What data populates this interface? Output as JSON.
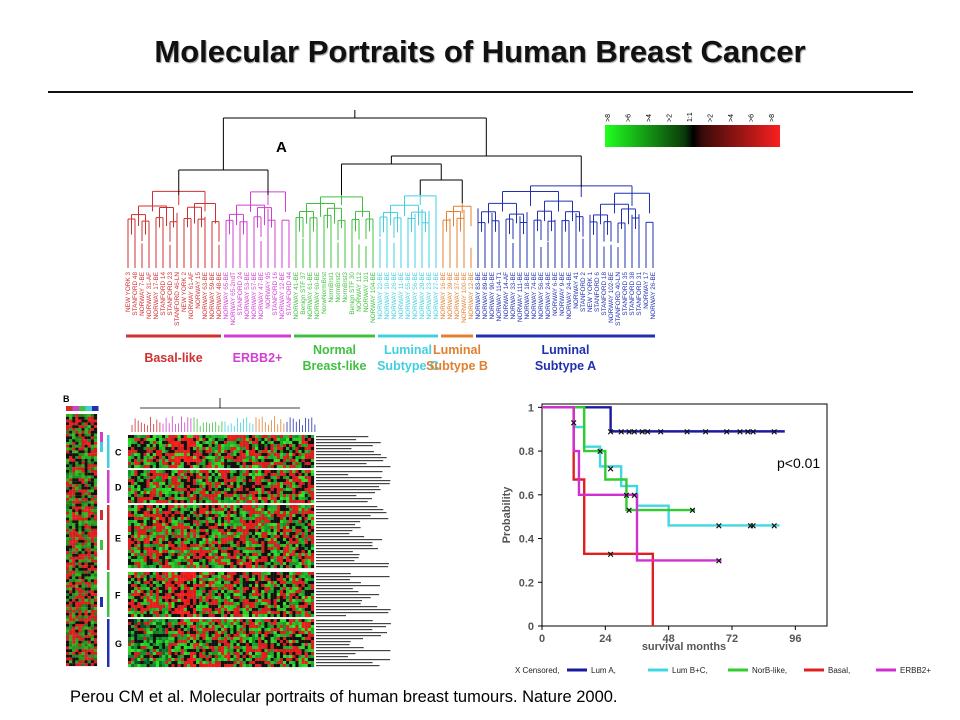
{
  "slide": {
    "title": "Molecular Portraits of Human Breast Cancer",
    "citation": "Perou CM et al. Molecular portraits of human breast tumours. Nature 2000."
  },
  "dendrogram": {
    "panel_label": "A",
    "scale_labels": [
      ">8",
      ">6",
      ">4",
      ">2",
      "1:1",
      ">2",
      ">4",
      ">6",
      ">8"
    ],
    "groups": [
      {
        "name": "Basal-like",
        "color": "#d03030",
        "samples": [
          "NEW YORK 3",
          "STANFORD 48",
          "NORWAY 7-BE",
          "NORWAY 31-AF",
          "NORWAY 17-BE",
          "STANFORD 14",
          "STANFORD 23",
          "STANFORD 46-LN",
          "NEW YORK 2",
          "NORWAY 61-AF",
          "NORWAY 15",
          "NORWAY 63-BE",
          "NORWAY 59-BE",
          "NORWAY 48-BE"
        ]
      },
      {
        "name": "ERBB2+",
        "color": "#d040d0",
        "samples": [
          "NORWAY 65-BE",
          "NORWAY 65-2ndT",
          "STANFORD 24",
          "NORWAY 53-BE",
          "NORWAY 57-BE",
          "NORWAY 47-BE",
          "NORWAY 95",
          "STANFORD 16",
          "NORWAY 12-BE",
          "STANFORD 44"
        ]
      },
      {
        "name": "Normal Breast-like",
        "color": "#40c040",
        "samples": [
          "NORWAY 41-BE",
          "Benign STF 37",
          "NORWAY 61-BE",
          "NORWAY 60-BE",
          "NorwNormBrst",
          "NormBrst1",
          "NormBrst2",
          "NormBrst3",
          "Benign STF 30",
          "NORWAY 112",
          "NORWAY 101",
          "NORWAY 104-BE"
        ]
      },
      {
        "name": "Luminal Subtype C",
        "color": "#40d0e0",
        "samples": [
          "NORWAY 22-BE",
          "NORWAY 10-BE",
          "NORWAY 26-BE",
          "NORWAY 11-BE",
          "NORWAY 55-BE",
          "NORWAY 56-BE",
          "NORWAY 29-BE",
          "NORWAY 23-BE",
          "NORWAY 27-BE"
        ]
      },
      {
        "name": "Luminal Subtype B",
        "color": "#e08030",
        "samples": [
          "NORWAY 16-BE",
          "NORWAY 39-BE",
          "NORWAY 37-BE",
          "NORWAY 100-BE",
          "NORWAY 12-BE"
        ]
      },
      {
        "name": "Luminal Subtype A",
        "color": "#2030b0",
        "samples": [
          "NORWAY 83-BE",
          "NORWAY 89-BE",
          "NORWAY 90-BE",
          "NORWAY 114-T1",
          "NORWAY 14-AF",
          "NORWAY 33-BE",
          "NORWAY 111-BE",
          "NORWAY 18-BE",
          "NORWAY 74-BE",
          "NORWAY 56-BE",
          "NORWAY 24-BE",
          "NORWAY 6-BE",
          "NORWAY 9-BE",
          "NORWAY 24-BE",
          "NORWAY 41",
          "STANFORD 2",
          "NEW YORK 1",
          "STANFORD 6",
          "STANFORD 18",
          "NORWAY 102-BE",
          "STANFORD 40-LN",
          "STANFORD 35",
          "STANFORD 38",
          "STANFORD 31",
          "NORWAY 17",
          "NORWAY 26-BE"
        ]
      }
    ]
  },
  "heatmap": {
    "panel_label": "B",
    "cluster_labels": [
      "C",
      "D",
      "E",
      "F",
      "G"
    ]
  },
  "survival_chart": {
    "chart_data": {
      "type": "line",
      "xlabel": "survival months",
      "ylabel": "Probability",
      "xlim": [
        0,
        108
      ],
      "ylim": [
        0,
        1
      ],
      "xticks": [
        "0",
        "24",
        "48",
        "72",
        "96"
      ],
      "yticks": [
        "0",
        "0.2",
        "0.4",
        "0.6",
        "0.8",
        "1"
      ],
      "annotation": "p<0.01",
      "series": [
        {
          "name": "Lum A",
          "color": "#1a1aa0",
          "steps": [
            [
              0,
              1
            ],
            [
              20,
              1
            ],
            [
              26,
              0.89
            ],
            [
              92,
              0.89
            ]
          ],
          "censored": [
            [
              12,
              0.93
            ],
            [
              26,
              0.89
            ],
            [
              30,
              0.89
            ],
            [
              33,
              0.89
            ],
            [
              35,
              0.89
            ],
            [
              38,
              0.89
            ],
            [
              40,
              0.89
            ],
            [
              45,
              0.89
            ],
            [
              55,
              0.89
            ],
            [
              62,
              0.89
            ],
            [
              70,
              0.89
            ],
            [
              75,
              0.89
            ],
            [
              78,
              0.89
            ],
            [
              80,
              0.89
            ],
            [
              88,
              0.89
            ]
          ]
        },
        {
          "name": "Lum B+C",
          "color": "#40d8e0",
          "steps": [
            [
              0,
              1
            ],
            [
              10,
              1
            ],
            [
              12,
              0.91
            ],
            [
              16,
              0.82
            ],
            [
              22,
              0.73
            ],
            [
              30,
              0.64
            ],
            [
              36,
              0.55
            ],
            [
              48,
              0.46
            ],
            [
              90,
              0.46
            ]
          ],
          "censored": [
            [
              26,
              0.72
            ],
            [
              32,
              0.6
            ],
            [
              67,
              0.46
            ],
            [
              79,
              0.46
            ],
            [
              80,
              0.46
            ],
            [
              88,
              0.46
            ]
          ]
        },
        {
          "name": "NorB-like",
          "color": "#30cc30",
          "steps": [
            [
              0,
              1
            ],
            [
              14,
              1
            ],
            [
              16,
              0.8
            ],
            [
              22,
              0.8
            ],
            [
              24,
              0.67
            ],
            [
              30,
              0.67
            ],
            [
              32,
              0.53
            ],
            [
              58,
              0.53
            ]
          ],
          "censored": [
            [
              22,
              0.8
            ],
            [
              33,
              0.53
            ],
            [
              57,
              0.53
            ]
          ]
        },
        {
          "name": "Basal",
          "color": "#e02020",
          "steps": [
            [
              0,
              1
            ],
            [
              10,
              1
            ],
            [
              12,
              0.67
            ],
            [
              16,
              0.33
            ],
            [
              22,
              0.33
            ],
            [
              26,
              0.33
            ],
            [
              40,
              0.33
            ],
            [
              42,
              0
            ]
          ],
          "censored": [
            [
              26,
              0.33
            ]
          ]
        },
        {
          "name": "ERBB2+",
          "color": "#d030d0",
          "steps": [
            [
              0,
              1
            ],
            [
              10,
              1
            ],
            [
              12,
              0.8
            ],
            [
              14,
              0.6
            ],
            [
              24,
              0.6
            ],
            [
              34,
              0.6
            ],
            [
              36,
              0.3
            ],
            [
              68,
              0.3
            ]
          ],
          "censored": [
            [
              35,
              0.6
            ],
            [
              67,
              0.3
            ]
          ]
        }
      ]
    },
    "legend": {
      "censored_label": "X Censored,",
      "entries": [
        "Lum A,",
        "Lum B+C,",
        "NorB-like,",
        "Basal,",
        "ERBB2+"
      ]
    }
  }
}
